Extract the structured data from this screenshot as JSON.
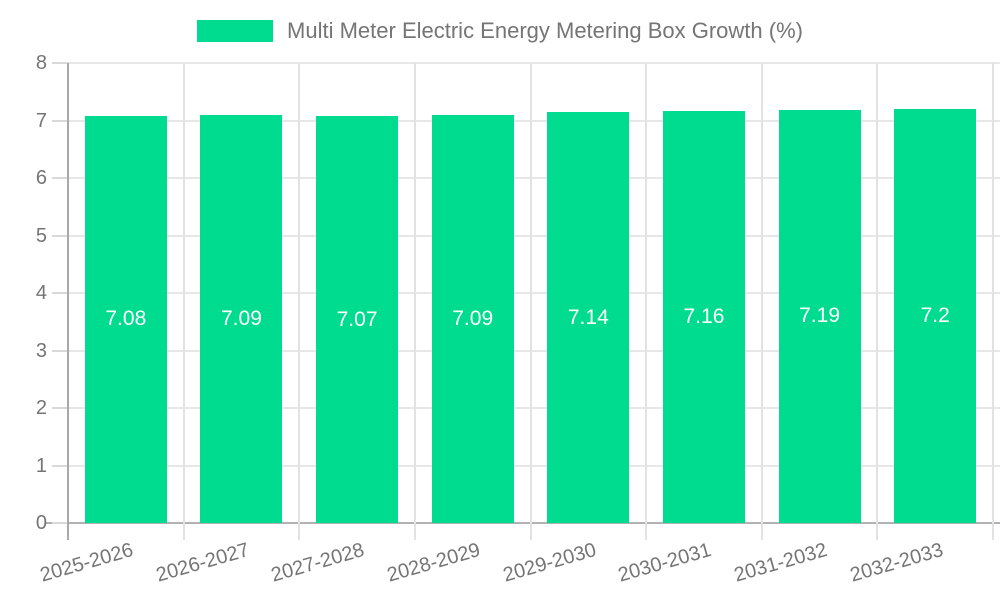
{
  "legend": {
    "label": "Multi Meter Electric Energy Metering Box Growth (%)"
  },
  "chart_data": {
    "type": "bar",
    "title": "Multi Meter Electric Energy Metering Box Growth (%)",
    "categories": [
      "2025-2026",
      "2026-2027",
      "2027-2028",
      "2028-2029",
      "2029-2030",
      "2030-2031",
      "2031-2032",
      "2032-2033"
    ],
    "values": [
      7.08,
      7.09,
      7.07,
      7.09,
      7.14,
      7.16,
      7.19,
      7.2
    ],
    "value_labels": [
      "7.08",
      "7.09",
      "7.07",
      "7.09",
      "7.14",
      "7.16",
      "7.19",
      "7.2"
    ],
    "y_ticks": [
      "0",
      "1",
      "2",
      "3",
      "4",
      "5",
      "6",
      "7",
      "8"
    ],
    "ylim": [
      0,
      8
    ],
    "xlabel": "",
    "ylabel": "",
    "grid": true,
    "legend_position": "top",
    "colors": {
      "bar": "#00DC8F",
      "value_label": "#FFFFFF",
      "axis_text": "#757575",
      "grid_line": "#E7E7E7",
      "axis_line": "#A9A9A9",
      "baseline": "#B2B2B2",
      "tick": "#D9D9D9"
    }
  }
}
